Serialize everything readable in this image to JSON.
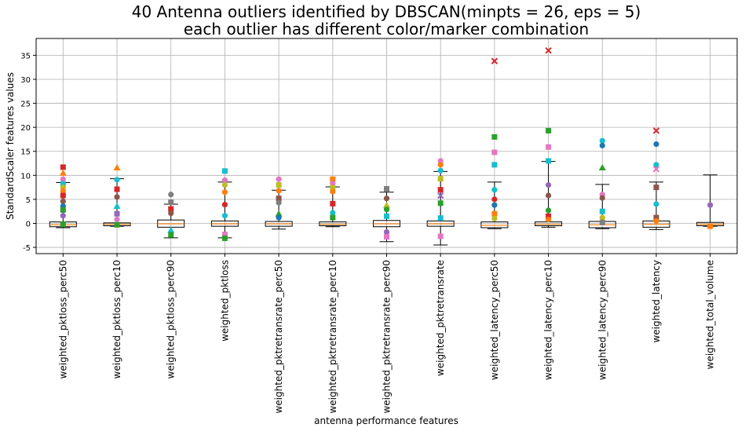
{
  "chart_data": {
    "type": "box",
    "title_line1": "40 Antenna outliers identified by DBSCAN(minpts = 26, eps = 5)",
    "title_line2": "each outlier has different color/marker combination",
    "xlabel": "antenna performance features",
    "ylabel": "StandardScaler features values",
    "ylim": [
      -6.3,
      38.5
    ],
    "yticks": [
      -5,
      0,
      5,
      10,
      15,
      20,
      25,
      30,
      35
    ],
    "grid": true,
    "categories": [
      "weighted_pktloss_perc50",
      "weighted_pktloss_perc10",
      "weighted_pktloss_perc90",
      "weighted_pktloss",
      "weighted_pktretransrate_perc50",
      "weighted_pktretransrate_perc10",
      "weighted_pktretransrate_perc90",
      "weighted_pktretransrate",
      "weighted_latency_perc50",
      "weighted_latency_perc10",
      "weighted_latency_perc90",
      "weighted_latency",
      "weighted_total_volume"
    ],
    "boxes": [
      {
        "whislo": -0.9,
        "q1": -0.7,
        "med": -0.3,
        "q3": 0.3,
        "whishi": 8.5
      },
      {
        "whislo": -0.6,
        "q1": -0.5,
        "med": -0.2,
        "q3": 0.1,
        "whishi": 9.3
      },
      {
        "whislo": -3.0,
        "q1": -0.8,
        "med": -0.1,
        "q3": 0.7,
        "whishi": 4.0
      },
      {
        "whislo": -3.0,
        "q1": -0.6,
        "med": -0.1,
        "q3": 0.5,
        "whishi": 8.6
      },
      {
        "whislo": -1.2,
        "q1": -0.6,
        "med": -0.1,
        "q3": 0.4,
        "whishi": 6.9
      },
      {
        "whislo": -0.7,
        "q1": -0.5,
        "med": -0.2,
        "q3": 0.3,
        "whishi": 7.6
      },
      {
        "whislo": -3.8,
        "q1": -0.7,
        "med": -0.1,
        "q3": 0.6,
        "whishi": 6.5
      },
      {
        "whislo": -4.5,
        "q1": -0.6,
        "med": -0.1,
        "q3": 0.5,
        "whishi": 10.8
      },
      {
        "whislo": -1.1,
        "q1": -0.9,
        "med": -0.4,
        "q3": 0.3,
        "whishi": 8.6
      },
      {
        "whislo": -0.8,
        "q1": -0.5,
        "med": -0.2,
        "q3": 0.3,
        "whishi": 12.9
      },
      {
        "whislo": -1.1,
        "q1": -0.9,
        "med": -0.3,
        "q3": 0.4,
        "whishi": 8.1
      },
      {
        "whislo": -1.3,
        "q1": -0.8,
        "med": -0.2,
        "q3": 0.5,
        "whishi": 8.6
      },
      {
        "whislo": -0.6,
        "q1": -0.5,
        "med": -0.2,
        "q3": 0.2,
        "whishi": 10.1
      }
    ],
    "outliers": [
      {
        "c": 0,
        "y": 11.7,
        "color": "#d62728",
        "marker": "square"
      },
      {
        "c": 0,
        "y": 10.5,
        "color": "#ff7f0e",
        "marker": "triangle"
      },
      {
        "c": 0,
        "y": 9.2,
        "color": "#e377c2",
        "marker": "circle"
      },
      {
        "c": 0,
        "y": 8.2,
        "color": "#17becf",
        "marker": "square"
      },
      {
        "c": 0,
        "y": 7.5,
        "color": "#bcbd22",
        "marker": "circle"
      },
      {
        "c": 0,
        "y": 6.8,
        "color": "#ff7f0e",
        "marker": "circle"
      },
      {
        "c": 0,
        "y": 5.8,
        "color": "#d62728",
        "marker": "square"
      },
      {
        "c": 0,
        "y": 4.6,
        "color": "#8c564b",
        "marker": "circle"
      },
      {
        "c": 0,
        "y": 3.6,
        "color": "#1f77b4",
        "marker": "circle"
      },
      {
        "c": 0,
        "y": 2.8,
        "color": "#2ca02c",
        "marker": "square"
      },
      {
        "c": 0,
        "y": 1.6,
        "color": "#9467bd",
        "marker": "circle"
      },
      {
        "c": 0,
        "y": -0.2,
        "color": "#2ca02c",
        "marker": "square"
      },
      {
        "c": 1,
        "y": 11.6,
        "color": "#ff7f0e",
        "marker": "triangle"
      },
      {
        "c": 1,
        "y": 9.1,
        "color": "#17becf",
        "marker": "circle"
      },
      {
        "c": 1,
        "y": 7.1,
        "color": "#d62728",
        "marker": "square"
      },
      {
        "c": 1,
        "y": 5.5,
        "color": "#8c564b",
        "marker": "circle"
      },
      {
        "c": 1,
        "y": 3.6,
        "color": "#17becf",
        "marker": "triangle"
      },
      {
        "c": 1,
        "y": 2.0,
        "color": "#9467bd",
        "marker": "square"
      },
      {
        "c": 1,
        "y": 0.8,
        "color": "#e377c2",
        "marker": "circle"
      },
      {
        "c": 1,
        "y": -0.3,
        "color": "#2ca02c",
        "marker": "square"
      },
      {
        "c": 2,
        "y": 6.0,
        "color": "#7f7f7f",
        "marker": "circle"
      },
      {
        "c": 2,
        "y": 4.4,
        "color": "#7f7f7f",
        "marker": "square"
      },
      {
        "c": 2,
        "y": 3.0,
        "color": "#d62728",
        "marker": "square"
      },
      {
        "c": 2,
        "y": 2.1,
        "color": "#8c564b",
        "marker": "circle"
      },
      {
        "c": 2,
        "y": -1.4,
        "color": "#17becf",
        "marker": "triangle"
      },
      {
        "c": 2,
        "y": -2.4,
        "color": "#2ca02c",
        "marker": "square"
      },
      {
        "c": 3,
        "y": 10.9,
        "color": "#17becf",
        "marker": "square"
      },
      {
        "c": 3,
        "y": 9.0,
        "color": "#e377c2",
        "marker": "circle"
      },
      {
        "c": 3,
        "y": 8.0,
        "color": "#bcbd22",
        "marker": "circle"
      },
      {
        "c": 3,
        "y": 6.5,
        "color": "#ff7f0e",
        "marker": "circle"
      },
      {
        "c": 3,
        "y": 3.9,
        "color": "#d62728",
        "marker": "circle"
      },
      {
        "c": 3,
        "y": 1.6,
        "color": "#17becf",
        "marker": "circle"
      },
      {
        "c": 3,
        "y": -2.3,
        "color": "#e377c2",
        "marker": "square"
      },
      {
        "c": 3,
        "y": -3.1,
        "color": "#2ca02c",
        "marker": "square"
      },
      {
        "c": 4,
        "y": 9.2,
        "color": "#e377c2",
        "marker": "circle"
      },
      {
        "c": 4,
        "y": 8.0,
        "color": "#bcbd22",
        "marker": "square"
      },
      {
        "c": 4,
        "y": 6.8,
        "color": "#ff7f0e",
        "marker": "circle"
      },
      {
        "c": 4,
        "y": 5.2,
        "color": "#8c564b",
        "marker": "square"
      },
      {
        "c": 4,
        "y": 4.3,
        "color": "#7f7f7f",
        "marker": "circle"
      },
      {
        "c": 4,
        "y": 2.0,
        "color": "#2ca02c",
        "marker": "triangle"
      },
      {
        "c": 4,
        "y": 1.2,
        "color": "#1f77b4",
        "marker": "circle"
      },
      {
        "c": 5,
        "y": 9.2,
        "color": "#ff7f0e",
        "marker": "square"
      },
      {
        "c": 5,
        "y": 8.3,
        "color": "#e377c2",
        "marker": "circle"
      },
      {
        "c": 5,
        "y": 7.4,
        "color": "#bcbd22",
        "marker": "square"
      },
      {
        "c": 5,
        "y": 6.6,
        "color": "#ff7f0e",
        "marker": "circle"
      },
      {
        "c": 5,
        "y": 4.1,
        "color": "#d62728",
        "marker": "square"
      },
      {
        "c": 5,
        "y": 2.2,
        "color": "#17becf",
        "marker": "circle"
      },
      {
        "c": 5,
        "y": 1.2,
        "color": "#2ca02c",
        "marker": "square"
      },
      {
        "c": 6,
        "y": 7.2,
        "color": "#7f7f7f",
        "marker": "square"
      },
      {
        "c": 6,
        "y": 5.2,
        "color": "#8c564b",
        "marker": "circle"
      },
      {
        "c": 6,
        "y": 3.8,
        "color": "#bcbd22",
        "marker": "triangle"
      },
      {
        "c": 6,
        "y": 2.9,
        "color": "#2ca02c",
        "marker": "circle"
      },
      {
        "c": 6,
        "y": 1.5,
        "color": "#17becf",
        "marker": "square"
      },
      {
        "c": 6,
        "y": -1.8,
        "color": "#9467bd",
        "marker": "circle"
      },
      {
        "c": 6,
        "y": -2.8,
        "color": "#e377c2",
        "marker": "square"
      },
      {
        "c": 7,
        "y": 13.0,
        "color": "#e377c2",
        "marker": "circle"
      },
      {
        "c": 7,
        "y": 12.2,
        "color": "#ff7f0e",
        "marker": "circle"
      },
      {
        "c": 7,
        "y": 11.0,
        "color": "#17becf",
        "marker": "circle"
      },
      {
        "c": 7,
        "y": 9.3,
        "color": "#bcbd22",
        "marker": "square"
      },
      {
        "c": 7,
        "y": 7.0,
        "color": "#d62728",
        "marker": "square"
      },
      {
        "c": 7,
        "y": 5.8,
        "color": "#9467bd",
        "marker": "x"
      },
      {
        "c": 7,
        "y": 4.2,
        "color": "#2ca02c",
        "marker": "square"
      },
      {
        "c": 7,
        "y": 1.1,
        "color": "#17becf",
        "marker": "square"
      },
      {
        "c": 7,
        "y": -2.7,
        "color": "#e377c2",
        "marker": "square"
      },
      {
        "c": 8,
        "y": 33.8,
        "color": "#d62728",
        "marker": "x"
      },
      {
        "c": 8,
        "y": 18.0,
        "color": "#2ca02c",
        "marker": "square"
      },
      {
        "c": 8,
        "y": 14.8,
        "color": "#e377c2",
        "marker": "square"
      },
      {
        "c": 8,
        "y": 12.2,
        "color": "#17becf",
        "marker": "square"
      },
      {
        "c": 8,
        "y": 7.0,
        "color": "#17becf",
        "marker": "circle"
      },
      {
        "c": 8,
        "y": 5.0,
        "color": "#d62728",
        "marker": "circle"
      },
      {
        "c": 8,
        "y": 3.8,
        "color": "#1f77b4",
        "marker": "circle"
      },
      {
        "c": 8,
        "y": 2.0,
        "color": "#ff7f0e",
        "marker": "square"
      },
      {
        "c": 8,
        "y": 1.0,
        "color": "#bcbd22",
        "marker": "circle"
      },
      {
        "c": 9,
        "y": 36.0,
        "color": "#d62728",
        "marker": "x"
      },
      {
        "c": 9,
        "y": 19.3,
        "color": "#2ca02c",
        "marker": "square"
      },
      {
        "c": 9,
        "y": 15.9,
        "color": "#e377c2",
        "marker": "square"
      },
      {
        "c": 9,
        "y": 13.0,
        "color": "#17becf",
        "marker": "square"
      },
      {
        "c": 9,
        "y": 8.0,
        "color": "#9467bd",
        "marker": "circle"
      },
      {
        "c": 9,
        "y": 5.8,
        "color": "#8c564b",
        "marker": "circle"
      },
      {
        "c": 9,
        "y": 2.7,
        "color": "#2ca02c",
        "marker": "circle"
      },
      {
        "c": 9,
        "y": 1.5,
        "color": "#d62728",
        "marker": "square"
      },
      {
        "c": 9,
        "y": 0.8,
        "color": "#ff7f0e",
        "marker": "circle"
      },
      {
        "c": 10,
        "y": 17.2,
        "color": "#17becf",
        "marker": "circle"
      },
      {
        "c": 10,
        "y": 16.2,
        "color": "#1f77b4",
        "marker": "circle"
      },
      {
        "c": 10,
        "y": 11.6,
        "color": "#2ca02c",
        "marker": "triangle"
      },
      {
        "c": 10,
        "y": 6.0,
        "color": "#e377c2",
        "marker": "circle"
      },
      {
        "c": 10,
        "y": 5.3,
        "color": "#8c564b",
        "marker": "circle"
      },
      {
        "c": 10,
        "y": 2.5,
        "color": "#17becf",
        "marker": "square"
      },
      {
        "c": 10,
        "y": 1.2,
        "color": "#bcbd22",
        "marker": "circle"
      },
      {
        "c": 10,
        "y": 0.2,
        "color": "#7f7f7f",
        "marker": "square"
      },
      {
        "c": 11,
        "y": 19.3,
        "color": "#d62728",
        "marker": "x"
      },
      {
        "c": 11,
        "y": 16.5,
        "color": "#1f77b4",
        "marker": "circle"
      },
      {
        "c": 11,
        "y": 12.2,
        "color": "#17becf",
        "marker": "circle"
      },
      {
        "c": 11,
        "y": 11.3,
        "color": "#e377c2",
        "marker": "x"
      },
      {
        "c": 11,
        "y": 7.5,
        "color": "#8c564b",
        "marker": "square"
      },
      {
        "c": 11,
        "y": 4.0,
        "color": "#17becf",
        "marker": "circle"
      },
      {
        "c": 11,
        "y": 1.2,
        "color": "#8c564b",
        "marker": "square"
      },
      {
        "c": 11,
        "y": 0.5,
        "color": "#ff7f0e",
        "marker": "circle"
      },
      {
        "c": 12,
        "y": 3.8,
        "color": "#9467bd",
        "marker": "circle"
      },
      {
        "c": 12,
        "y": -0.6,
        "color": "#ff7f0e",
        "marker": "square"
      }
    ]
  }
}
